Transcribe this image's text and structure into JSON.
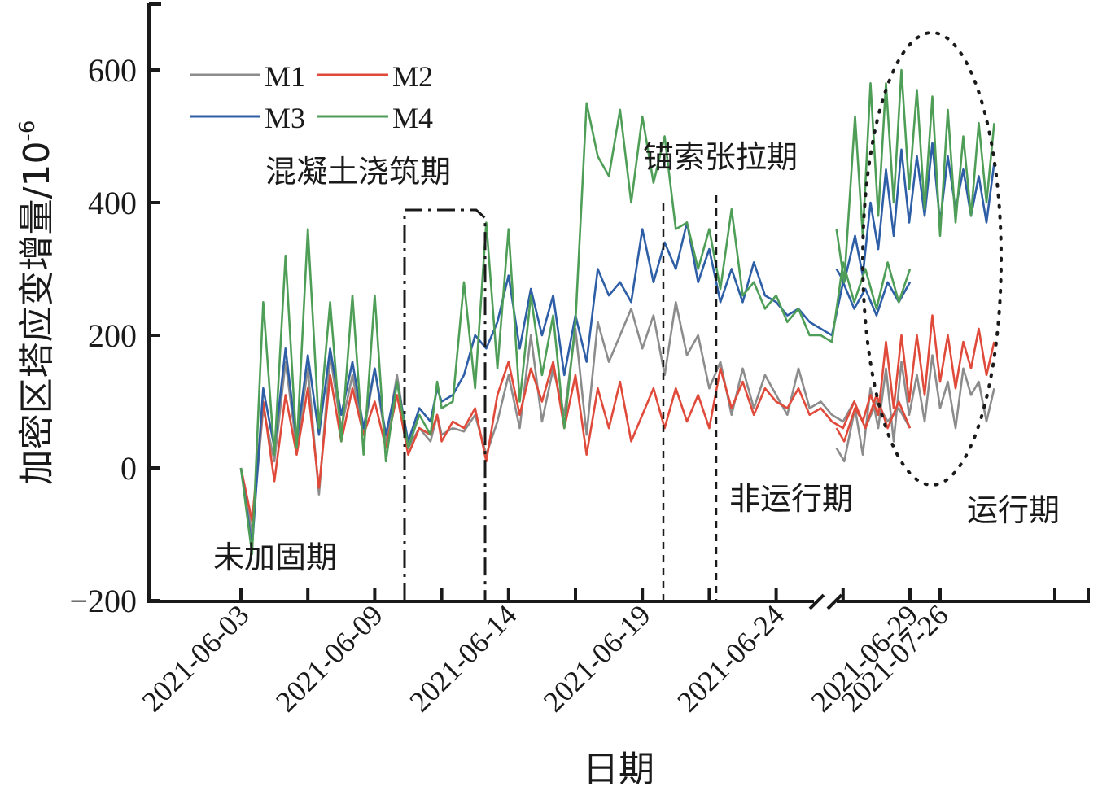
{
  "chart_data": {
    "type": "line",
    "xlabel": "日期",
    "ylabel": "加密区塔应变增量/10",
    "ylabel_exponent": "-6",
    "ylim": [
      -200,
      700
    ],
    "yticks": [
      -200,
      0,
      200,
      400,
      600
    ],
    "xticks": [
      {
        "label": "2021-06-03",
        "day": 0
      },
      {
        "label": "2021-06-09",
        "day": 6
      },
      {
        "label": "2021-06-14",
        "day": 12
      },
      {
        "label": "2021-06-19",
        "day": 18
      },
      {
        "label": "2021-06-24",
        "day": 24
      },
      {
        "label": "2021-06-29",
        "day": 30
      },
      {
        "label": "2021-07-26",
        "day": 38
      }
    ],
    "axis_break_after": "2021-06-29",
    "legend": {
      "position": "top-left",
      "columns": 2
    },
    "colors": {
      "M1": "#8c8c8c",
      "M2": "#e04a3a",
      "M3": "#2e5fa6",
      "M4": "#4f9e58"
    },
    "series": [
      {
        "name": "M1",
        "x": [
          0,
          0.5,
          1,
          1.5,
          2,
          2.5,
          3,
          3.5,
          4,
          4.5,
          5,
          5.5,
          6,
          6.5,
          7,
          7.5,
          8,
          8.5,
          8.8,
          9,
          9.5,
          10,
          10.5,
          11,
          11.5,
          12,
          12.5,
          13,
          13.5,
          14,
          14.5,
          15,
          15.5,
          16,
          16.5,
          17,
          17.5,
          18,
          18.5,
          19,
          19.5,
          20,
          20.5,
          21,
          21.5,
          22,
          22.5,
          23,
          23.5,
          24,
          24.5,
          25,
          25.5,
          26,
          26.5,
          27,
          27.5,
          28,
          28.5,
          29,
          29.5,
          30,
          31.3,
          31.8,
          32.5,
          33,
          33.5,
          34,
          34.5,
          35,
          35.5,
          36,
          36.5,
          37,
          37.5,
          38,
          38.5,
          39,
          39.5,
          40,
          40.5,
          41,
          41.5
        ],
        "y": [
          0,
          -100,
          90,
          10,
          160,
          30,
          150,
          -40,
          170,
          60,
          140,
          50,
          150,
          40,
          140,
          30,
          60,
          40,
          80,
          50,
          60,
          55,
          80,
          20,
          70,
          140,
          60,
          200,
          70,
          150,
          80,
          210,
          50,
          220,
          160,
          200,
          240,
          180,
          230,
          140,
          250,
          170,
          200,
          120,
          160,
          80,
          150,
          90,
          140,
          110,
          80,
          150,
          90,
          100,
          80,
          70,
          100,
          60,
          100,
          70,
          90,
          60,
          30,
          10,
          90,
          20,
          120,
          60,
          150,
          40,
          160,
          80,
          140,
          70,
          170,
          90,
          130,
          60,
          150,
          110,
          130,
          70,
          120
        ]
      },
      {
        "name": "M2",
        "x": [
          0,
          0.5,
          1,
          1.5,
          2,
          2.5,
          3,
          3.5,
          4,
          4.5,
          5,
          5.5,
          6,
          6.5,
          7,
          7.5,
          8,
          8.5,
          8.8,
          9,
          9.5,
          10,
          10.5,
          11,
          11.5,
          12,
          12.5,
          13,
          13.5,
          14,
          14.5,
          15,
          15.5,
          16,
          16.5,
          17,
          17.5,
          18,
          18.5,
          19,
          19.5,
          20,
          20.5,
          21,
          21.5,
          22,
          22.5,
          23,
          23.5,
          24,
          24.5,
          25,
          25.5,
          26,
          26.5,
          27,
          27.5,
          28,
          28.5,
          29,
          29.5,
          30,
          31.3,
          31.8,
          32.5,
          33,
          33.5,
          34,
          34.5,
          35,
          35.5,
          36,
          36.5,
          37,
          37.5,
          38,
          38.5,
          39,
          39.5,
          40,
          40.5,
          41,
          41.5
        ],
        "y": [
          0,
          -80,
          100,
          -20,
          110,
          20,
          120,
          -30,
          140,
          40,
          120,
          50,
          100,
          30,
          110,
          20,
          60,
          50,
          80,
          40,
          70,
          60,
          90,
          10,
          110,
          160,
          80,
          150,
          100,
          160,
          60,
          140,
          20,
          120,
          60,
          130,
          40,
          80,
          120,
          60,
          120,
          70,
          110,
          60,
          150,
          90,
          130,
          80,
          120,
          100,
          90,
          120,
          80,
          90,
          70,
          60,
          100,
          60,
          110,
          60,
          100,
          60,
          60,
          40,
          90,
          70,
          110,
          80,
          190,
          90,
          200,
          100,
          200,
          110,
          230,
          130,
          200,
          120,
          190,
          150,
          210,
          140,
          190
        ]
      },
      {
        "name": "M3",
        "x": [
          0,
          0.5,
          1,
          1.5,
          2,
          2.5,
          3,
          3.5,
          4,
          4.5,
          5,
          5.5,
          6,
          6.5,
          7,
          7.5,
          8,
          8.5,
          8.8,
          9,
          9.5,
          10,
          10.5,
          11,
          11.5,
          12,
          12.5,
          13,
          13.5,
          14,
          14.5,
          15,
          15.5,
          16,
          16.5,
          17,
          17.5,
          18,
          18.5,
          19,
          19.5,
          20,
          20.5,
          21,
          21.5,
          22,
          22.5,
          23,
          23.5,
          24,
          24.5,
          25,
          25.5,
          26,
          26.5,
          27,
          27.5,
          28,
          28.5,
          29,
          29.5,
          30,
          31.3,
          31.8,
          32.5,
          33,
          33.5,
          34,
          34.5,
          35,
          35.5,
          36,
          36.5,
          37,
          37.5,
          38,
          38.5,
          39,
          39.5,
          40,
          40.5,
          41,
          41.5
        ],
        "y": [
          0,
          -120,
          120,
          30,
          180,
          40,
          170,
          50,
          180,
          80,
          160,
          60,
          150,
          50,
          130,
          40,
          90,
          70,
          120,
          100,
          110,
          140,
          200,
          180,
          220,
          290,
          180,
          270,
          200,
          260,
          140,
          230,
          160,
          300,
          260,
          280,
          250,
          360,
          280,
          340,
          300,
          370,
          280,
          330,
          250,
          300,
          250,
          310,
          260,
          250,
          230,
          240,
          220,
          210,
          200,
          280,
          240,
          270,
          230,
          280,
          250,
          280,
          300,
          280,
          350,
          290,
          400,
          330,
          450,
          350,
          480,
          370,
          470,
          380,
          490,
          370,
          470,
          390,
          450,
          380,
          440,
          370,
          460
        ]
      },
      {
        "name": "M4",
        "x": [
          0,
          0.5,
          1,
          1.5,
          2,
          2.5,
          3,
          3.5,
          4,
          4.5,
          5,
          5.5,
          6,
          6.5,
          7,
          7.5,
          8,
          8.5,
          8.8,
          9,
          9.5,
          10,
          10.5,
          11,
          11.5,
          12,
          12.5,
          13,
          13.5,
          14,
          14.5,
          15,
          15.5,
          16,
          16.5,
          17,
          17.5,
          18,
          18.5,
          19,
          19.5,
          20,
          20.5,
          21,
          21.5,
          22,
          22.5,
          23,
          23.5,
          24,
          24.5,
          25,
          25.5,
          26,
          26.5,
          27,
          27.5,
          28,
          28.5,
          29,
          29.5,
          30,
          31.3,
          31.8,
          32.5,
          33,
          33.5,
          34,
          34.5,
          35,
          35.5,
          36,
          36.5,
          37,
          37.5,
          38,
          38.5,
          39,
          39.5,
          40,
          40.5,
          41,
          41.5
        ],
        "y": [
          0,
          -130,
          250,
          20,
          320,
          30,
          360,
          60,
          250,
          40,
          260,
          20,
          260,
          10,
          130,
          30,
          80,
          50,
          130,
          90,
          100,
          280,
          120,
          370,
          150,
          360,
          100,
          260,
          140,
          230,
          60,
          220,
          550,
          470,
          440,
          540,
          400,
          530,
          430,
          500,
          360,
          370,
          300,
          360,
          270,
          390,
          260,
          280,
          240,
          260,
          220,
          240,
          200,
          200,
          190,
          310,
          250,
          300,
          240,
          310,
          250,
          300,
          360,
          280,
          530,
          350,
          580,
          380,
          580,
          400,
          600,
          420,
          570,
          390,
          560,
          350,
          540,
          370,
          500,
          380,
          520,
          400,
          520
        ]
      }
    ],
    "annotations": [
      {
        "id": "unreinforced",
        "text": "未加固期"
      },
      {
        "id": "concrete-pouring",
        "text": "混凝土浇筑期"
      },
      {
        "id": "anchor-tension",
        "text": "锚索张拉期"
      },
      {
        "id": "non-operation",
        "text": "非运行期"
      },
      {
        "id": "operation",
        "text": "运行期"
      }
    ]
  }
}
